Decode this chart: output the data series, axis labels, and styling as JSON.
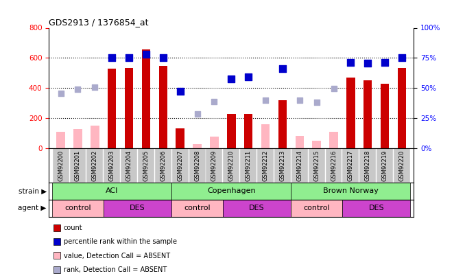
{
  "title": "GDS2913 / 1376854_at",
  "samples": [
    "GSM92200",
    "GSM92201",
    "GSM92202",
    "GSM92203",
    "GSM92204",
    "GSM92205",
    "GSM92206",
    "GSM92207",
    "GSM92208",
    "GSM92209",
    "GSM92210",
    "GSM92211",
    "GSM92212",
    "GSM92213",
    "GSM92214",
    "GSM92215",
    "GSM92216",
    "GSM92217",
    "GSM92218",
    "GSM92219",
    "GSM92220"
  ],
  "count_values": [
    null,
    null,
    null,
    530,
    535,
    655,
    545,
    130,
    null,
    null,
    225,
    225,
    null,
    320,
    null,
    null,
    null,
    470,
    450,
    430,
    535
  ],
  "absent_values": [
    110,
    125,
    148,
    null,
    null,
    null,
    null,
    null,
    28,
    75,
    null,
    null,
    158,
    null,
    80,
    50,
    110,
    null,
    null,
    null,
    null
  ],
  "rank_present": [
    null,
    null,
    null,
    600,
    600,
    625,
    600,
    380,
    null,
    null,
    460,
    475,
    null,
    530,
    null,
    null,
    null,
    570,
    565,
    570,
    600
  ],
  "rank_absent": [
    365,
    390,
    405,
    null,
    null,
    null,
    null,
    null,
    225,
    310,
    null,
    null,
    320,
    null,
    320,
    305,
    395,
    null,
    null,
    null,
    null
  ],
  "ylim_left": [
    0,
    800
  ],
  "ylim_right": [
    0,
    100
  ],
  "yticks_left": [
    0,
    200,
    400,
    600,
    800
  ],
  "yticks_right": [
    0,
    25,
    50,
    75,
    100
  ],
  "strains": [
    {
      "label": "ACI",
      "start": 0,
      "end": 6,
      "color": "#90EE90"
    },
    {
      "label": "Copenhagen",
      "start": 7,
      "end": 13,
      "color": "#90EE90"
    },
    {
      "label": "Brown Norway",
      "start": 14,
      "end": 20,
      "color": "#90EE90"
    }
  ],
  "agents": [
    {
      "label": "control",
      "start": 0,
      "end": 2,
      "color": "#FFB6C1"
    },
    {
      "label": "DES",
      "start": 3,
      "end": 6,
      "color": "#CC44CC"
    },
    {
      "label": "control",
      "start": 7,
      "end": 9,
      "color": "#FFB6C1"
    },
    {
      "label": "DES",
      "start": 10,
      "end": 13,
      "color": "#CC44CC"
    },
    {
      "label": "control",
      "start": 14,
      "end": 16,
      "color": "#FFB6C1"
    },
    {
      "label": "DES",
      "start": 17,
      "end": 20,
      "color": "#CC44CC"
    }
  ],
  "bar_width": 0.5,
  "count_color": "#CC0000",
  "absent_color": "#FFB6C1",
  "rank_present_color": "#0000CC",
  "rank_absent_color": "#AAAACC",
  "xtick_bg": "#C8C8C8",
  "legend_items": [
    {
      "label": "count",
      "color": "#CC0000"
    },
    {
      "label": "percentile rank within the sample",
      "color": "#0000CC"
    },
    {
      "label": "value, Detection Call = ABSENT",
      "color": "#FFB6C1"
    },
    {
      "label": "rank, Detection Call = ABSENT",
      "color": "#AAAACC"
    }
  ]
}
